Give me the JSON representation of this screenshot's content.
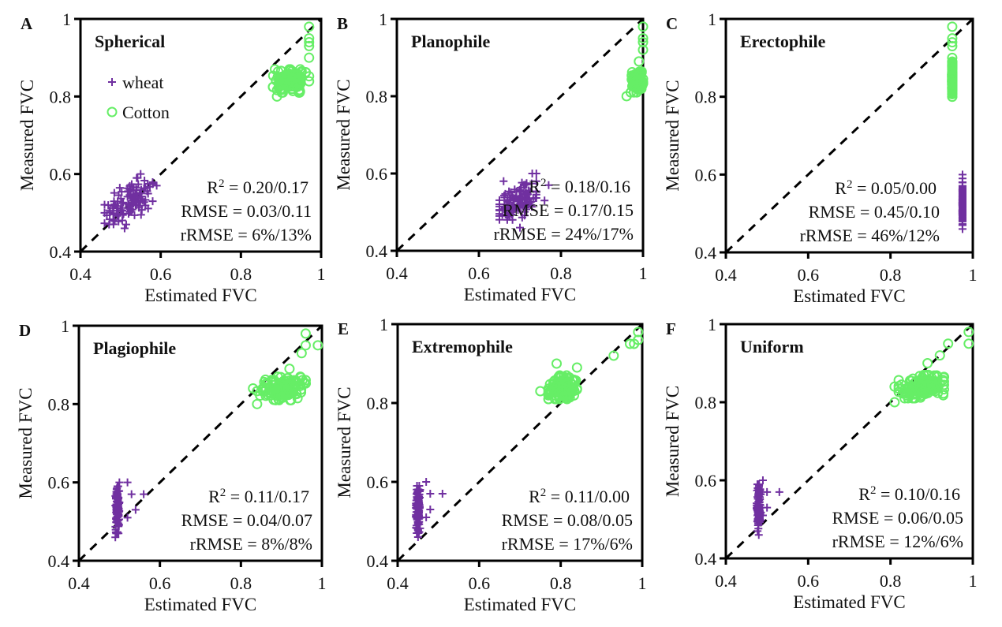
{
  "figure": {
    "x_axis_label": "Estimated FVC",
    "y_axis_label": "Measured FVC",
    "legend": [
      {
        "name": "wheat",
        "marker": "plus",
        "color": "#7030a0"
      },
      {
        "name": "Cotton",
        "marker": "circle",
        "color": "#66ee66"
      }
    ],
    "reference_line": "1:1 dashed",
    "colors": {
      "wheat": "#7030a0",
      "cotton": "#66ee66",
      "axis": "#000000"
    }
  },
  "chart_data": [
    {
      "type": "scatter",
      "letter": "A",
      "title": "Spherical",
      "xlabel": "Estimated FVC",
      "ylabel": "Measured FVC",
      "xlim": [
        0.4,
        1
      ],
      "ylim": [
        0.4,
        1
      ],
      "xticks": [
        "0.4",
        "0.6",
        "0.8",
        "1"
      ],
      "yticks": [
        "0.4",
        "0.6",
        "0.8",
        "1"
      ],
      "legend_shown": true,
      "legend_placement": "top-left",
      "stats": {
        "r2": "0.20/0.17",
        "rmse": "0.03/0.11",
        "rrmse": "6%/13%"
      },
      "series": [
        {
          "name": "wheat",
          "cluster": {
            "x": [
              0.46,
              0.58
            ],
            "y": [
              0.47,
              0.59
            ],
            "n": 110,
            "corr": 0.6
          },
          "points": [
            [
              0.51,
              0.46
            ],
            [
              0.55,
              0.6
            ],
            [
              0.59,
              0.57
            ],
            [
              0.58,
              0.53
            ],
            [
              0.46,
              0.5
            ],
            [
              0.54,
              0.59
            ]
          ]
        },
        {
          "name": "Cotton",
          "cluster": {
            "x": [
              0.88,
              0.97
            ],
            "y": [
              0.81,
              0.87
            ],
            "n": 120,
            "corr": 0.1
          },
          "points": [
            [
              0.97,
              0.98
            ],
            [
              0.97,
              0.95
            ],
            [
              0.97,
              0.94
            ],
            [
              0.97,
              0.93
            ],
            [
              0.97,
              0.9
            ],
            [
              0.89,
              0.8
            ]
          ]
        }
      ]
    },
    {
      "type": "scatter",
      "letter": "B",
      "title": "Planophile",
      "xlabel": "Estimated FVC",
      "ylabel": "Measured FVC",
      "xlim": [
        0.4,
        1
      ],
      "ylim": [
        0.4,
        1
      ],
      "xticks": [
        "0.4",
        "0.6",
        "0.8",
        "1"
      ],
      "yticks": [
        "0.4",
        "0.6",
        "0.8",
        "1"
      ],
      "legend_shown": false,
      "stats": {
        "r2": "0.18/0.16",
        "rmse": "0.17/0.15",
        "rrmse": "24%/17%"
      },
      "series": [
        {
          "name": "wheat",
          "cluster": {
            "x": [
              0.65,
              0.74
            ],
            "y": [
              0.48,
              0.58
            ],
            "n": 110,
            "corr": 0.4
          },
          "points": [
            [
              0.7,
              0.46
            ],
            [
              0.73,
              0.6
            ],
            [
              0.74,
              0.6
            ],
            [
              0.77,
              0.57
            ],
            [
              0.76,
              0.53
            ],
            [
              0.65,
              0.49
            ]
          ]
        },
        {
          "name": "Cotton",
          "cluster": {
            "x": [
              0.97,
              1.0
            ],
            "y": [
              0.81,
              0.87
            ],
            "n": 110,
            "corr": 0.0
          },
          "points": [
            [
              1.0,
              0.98
            ],
            [
              1.0,
              0.95
            ],
            [
              1.0,
              0.94
            ],
            [
              1.0,
              0.92
            ],
            [
              0.96,
              0.8
            ],
            [
              0.99,
              0.89
            ]
          ]
        }
      ]
    },
    {
      "type": "scatter",
      "letter": "C",
      "title": "Erectophile",
      "xlabel": "Estimated FVC",
      "ylabel": "Measured FVC",
      "xlim": [
        0.4,
        1
      ],
      "ylim": [
        0.4,
        1
      ],
      "xticks": [
        "0.4",
        "0.6",
        "0.8",
        "1"
      ],
      "yticks": [
        "0.4",
        "0.6",
        "0.8",
        "1"
      ],
      "legend_shown": false,
      "stats": {
        "r2": "0.05/0.00",
        "rmse": "0.45/0.10",
        "rrmse": "46%/12%"
      },
      "series": [
        {
          "name": "wheat",
          "cluster": {
            "x": [
              0.975,
              0.975
            ],
            "y": [
              0.47,
              0.58
            ],
            "n": 110,
            "corr": 0.0
          },
          "points": [
            [
              0.975,
              0.6
            ],
            [
              0.975,
              0.59
            ],
            [
              0.975,
              0.58
            ],
            [
              0.975,
              0.47
            ],
            [
              0.975,
              0.46
            ]
          ]
        },
        {
          "name": "Cotton",
          "cluster": {
            "x": [
              0.95,
              0.95
            ],
            "y": [
              0.8,
              0.89
            ],
            "n": 110,
            "corr": 0.0
          },
          "points": [
            [
              0.95,
              0.98
            ],
            [
              0.95,
              0.95
            ],
            [
              0.95,
              0.94
            ],
            [
              0.95,
              0.93
            ],
            [
              0.95,
              0.9
            ]
          ]
        }
      ]
    },
    {
      "type": "scatter",
      "letter": "D",
      "title": "Plagiophile",
      "xlabel": "Estimated FVC",
      "ylabel": "Measured FVC",
      "xlim": [
        0.4,
        1
      ],
      "ylim": [
        0.4,
        1
      ],
      "xticks": [
        "0.4",
        "0.6",
        "0.8",
        "1"
      ],
      "yticks": [
        "0.4",
        "0.6",
        "0.8",
        "1"
      ],
      "legend_shown": false,
      "stats": {
        "r2": "0.11/0.17",
        "rmse": "0.04/0.07",
        "rrmse": "8%/8%"
      },
      "series": [
        {
          "name": "wheat",
          "cluster": {
            "x": [
              0.49,
              0.5
            ],
            "y": [
              0.47,
              0.59
            ],
            "n": 110,
            "corr": 0.0
          },
          "points": [
            [
              0.49,
              0.46
            ],
            [
              0.5,
              0.6
            ],
            [
              0.52,
              0.6
            ],
            [
              0.56,
              0.57
            ],
            [
              0.53,
              0.57
            ],
            [
              0.54,
              0.53
            ],
            [
              0.52,
              0.51
            ]
          ]
        },
        {
          "name": "Cotton",
          "cluster": {
            "x": [
              0.84,
              0.96
            ],
            "y": [
              0.81,
              0.87
            ],
            "n": 130,
            "corr": 0.3
          },
          "points": [
            [
              0.96,
              0.98
            ],
            [
              0.96,
              0.95
            ],
            [
              0.99,
              0.95
            ],
            [
              0.95,
              0.93
            ],
            [
              0.92,
              0.89
            ],
            [
              0.84,
              0.8
            ],
            [
              0.83,
              0.84
            ]
          ]
        }
      ]
    },
    {
      "type": "scatter",
      "letter": "E",
      "title": "Extremophile",
      "xlabel": "Estimated FVC",
      "ylabel": "Measured FVC",
      "xlim": [
        0.4,
        1
      ],
      "ylim": [
        0.4,
        1
      ],
      "xticks": [
        "0.4",
        "0.6",
        "0.8",
        "1"
      ],
      "yticks": [
        "0.4",
        "0.6",
        "0.8",
        "1"
      ],
      "legend_shown": false,
      "stats": {
        "r2": "0.11/0.00",
        "rmse": "0.08/0.05",
        "rrmse": "17%/6%"
      },
      "series": [
        {
          "name": "wheat",
          "cluster": {
            "x": [
              0.445,
              0.455
            ],
            "y": [
              0.47,
              0.59
            ],
            "n": 110,
            "corr": 0.0
          },
          "points": [
            [
              0.45,
              0.46
            ],
            [
              0.47,
              0.6
            ],
            [
              0.51,
              0.57
            ],
            [
              0.48,
              0.57
            ],
            [
              0.48,
              0.53
            ],
            [
              0.47,
              0.51
            ]
          ]
        },
        {
          "name": "Cotton",
          "cluster": {
            "x": [
              0.77,
              0.84
            ],
            "y": [
              0.81,
              0.87
            ],
            "n": 130,
            "corr": 0.3
          },
          "points": [
            [
              0.99,
              0.98
            ],
            [
              0.98,
              0.95
            ],
            [
              0.99,
              0.96
            ],
            [
              0.97,
              0.95
            ],
            [
              0.93,
              0.92
            ],
            [
              0.79,
              0.9
            ],
            [
              0.84,
              0.89
            ],
            [
              0.75,
              0.83
            ]
          ]
        }
      ]
    },
    {
      "type": "scatter",
      "letter": "F",
      "title": "Uniform",
      "xlabel": "Estimated FVC",
      "ylabel": "Measured FVC",
      "xlim": [
        0.4,
        1
      ],
      "ylim": [
        0.4,
        1
      ],
      "xticks": [
        "0.4",
        "0.6",
        "0.8",
        "1"
      ],
      "yticks": [
        "0.4",
        "0.6",
        "0.8",
        "1"
      ],
      "legend_shown": false,
      "stats": {
        "r2": "0.10/0.16",
        "rmse": "0.06/0.05",
        "rrmse": "12%/6%"
      },
      "series": [
        {
          "name": "wheat",
          "cluster": {
            "x": [
              0.475,
              0.485
            ],
            "y": [
              0.47,
              0.59
            ],
            "n": 110,
            "corr": 0.0
          },
          "points": [
            [
              0.48,
              0.46
            ],
            [
              0.49,
              0.6
            ],
            [
              0.53,
              0.57
            ],
            [
              0.5,
              0.57
            ],
            [
              0.5,
              0.53
            ],
            [
              0.49,
              0.51
            ]
          ]
        },
        {
          "name": "Cotton",
          "cluster": {
            "x": [
              0.82,
              0.93
            ],
            "y": [
              0.81,
              0.87
            ],
            "n": 130,
            "corr": 0.3
          },
          "points": [
            [
              0.99,
              0.98
            ],
            [
              0.99,
              0.95
            ],
            [
              0.94,
              0.95
            ],
            [
              0.92,
              0.92
            ],
            [
              0.89,
              0.9
            ],
            [
              0.81,
              0.8
            ],
            [
              0.81,
              0.84
            ]
          ]
        }
      ]
    }
  ]
}
